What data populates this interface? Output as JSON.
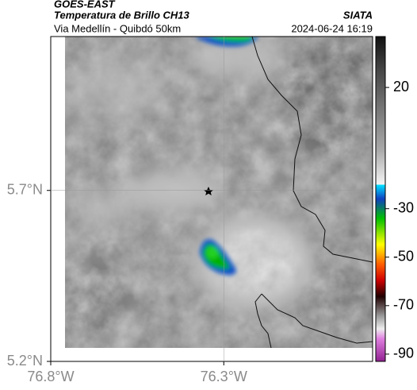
{
  "chart_data": {
    "type": "map",
    "title": "GOES-EAST",
    "subtitle": "Temperatura de Brillo CH13",
    "source": "SIATA",
    "region": "Via Medellín - Quibdó 50km",
    "timestamp": "2024-06-24 16:19",
    "xlim": [
      -76.8,
      -75.87
    ],
    "ylim": [
      5.2,
      6.15
    ],
    "xticks": [
      {
        "value": -76.8,
        "label": "76.8°W"
      },
      {
        "value": -76.3,
        "label": "76.3°W"
      }
    ],
    "yticks": [
      {
        "value": 5.2,
        "label": "5.2°N"
      },
      {
        "value": 5.7,
        "label": "5.7°N"
      }
    ],
    "grid": true,
    "colorbar": {
      "lim": [
        -93,
        41
      ],
      "ticks": [
        20,
        -30,
        -50,
        -70,
        -90
      ]
    }
  }
}
